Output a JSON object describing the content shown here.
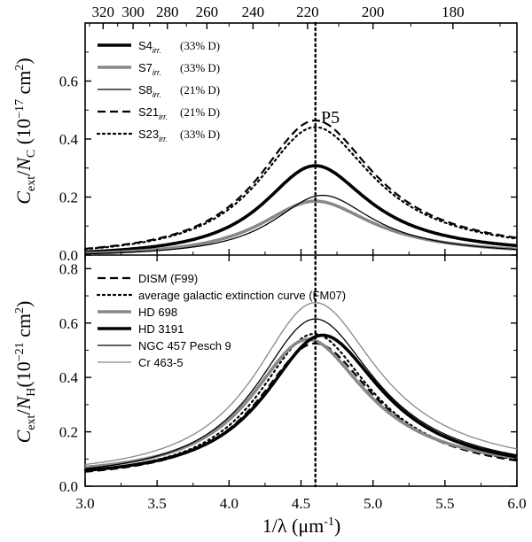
{
  "chart_data": {
    "type": "line",
    "xlabel": "1/λ (μm⁻¹)",
    "xlim": [
      3.0,
      6.0
    ],
    "x_ticks": [
      "3.0",
      "3.5",
      "4.0",
      "4.5",
      "5.0",
      "5.5",
      "6.0"
    ],
    "top_axis": {
      "unit": "nm",
      "ticks": [
        "320",
        "300",
        "280",
        "260",
        "240",
        "220",
        "200",
        "180"
      ],
      "tick_values": [
        320,
        300,
        280,
        260,
        240,
        220,
        200,
        180
      ]
    },
    "vertical_marker_x": 4.6,
    "annotation": "P5",
    "panels": [
      {
        "id": "top",
        "ylabel": "C_ext / N_C (10⁻¹⁷ cm²)",
        "ylim": [
          0.0,
          0.8
        ],
        "y_ticks": [
          "0.0",
          "0.2",
          "0.4",
          "0.6"
        ],
        "series": [
          {
            "name": "S4",
            "subscript": "irr.",
            "note": "(33% D)",
            "style": "thick-solid",
            "color": "#000000",
            "x0": 4.6,
            "gamma": 0.9,
            "amp": 0.312
          },
          {
            "name": "S7",
            "subscript": "irr.",
            "note": "(33% D)",
            "style": "thick-solid",
            "color": "#888888",
            "x0": 4.6,
            "gamma": 0.95,
            "amp": 0.19
          },
          {
            "name": "S8",
            "subscript": "irr.",
            "note": "(21% D)",
            "style": "thin-solid",
            "color": "#000000",
            "x0": 4.65,
            "gamma": 0.85,
            "amp": 0.21
          },
          {
            "name": "S21",
            "subscript": "irr.",
            "note": "(21% D)",
            "style": "dashed",
            "color": "#000000",
            "x0": 4.6,
            "gamma": 0.98,
            "amp": 0.468
          },
          {
            "name": "S23",
            "subscript": "irr.",
            "note": "(33% D)",
            "style": "dotted",
            "color": "#000000",
            "x0": 4.6,
            "gamma": 0.98,
            "amp": 0.445
          }
        ]
      },
      {
        "id": "bottom",
        "ylabel": "C_ext / N_H (10⁻²¹ cm²)",
        "ylim": [
          0.0,
          0.85
        ],
        "y_ticks": [
          "0.0",
          "0.2",
          "0.4",
          "0.6",
          "0.8"
        ],
        "series": [
          {
            "name": "DISM (F99)",
            "style": "dashed",
            "color": "#000000",
            "x0": 4.6,
            "gamma": 0.99,
            "amp": 0.5,
            "base": 0.025
          },
          {
            "name": "average galactic extinction curve  (FM07)",
            "style": "dotted",
            "color": "#000000",
            "x0": 4.59,
            "gamma": 0.96,
            "amp": 0.53,
            "base": 0.03
          },
          {
            "name": "HD 698",
            "style": "thick-solid",
            "color": "#888888",
            "x0": 4.55,
            "gamma": 0.98,
            "amp": 0.5,
            "base": 0.04
          },
          {
            "name": "HD 3191",
            "style": "thick-solid",
            "color": "#000000",
            "x0": 4.65,
            "gamma": 1.0,
            "amp": 0.525,
            "base": 0.03
          },
          {
            "name": "NGC 457 Pesch 9",
            "style": "thin-solid",
            "color": "#000000",
            "x0": 4.6,
            "gamma": 1.02,
            "amp": 0.585,
            "base": 0.03
          },
          {
            "name": "Cr 463-5",
            "style": "thin-solid",
            "color": "#888888",
            "x0": 4.6,
            "gamma": 1.05,
            "amp": 0.635,
            "base": 0.04
          }
        ]
      }
    ]
  }
}
